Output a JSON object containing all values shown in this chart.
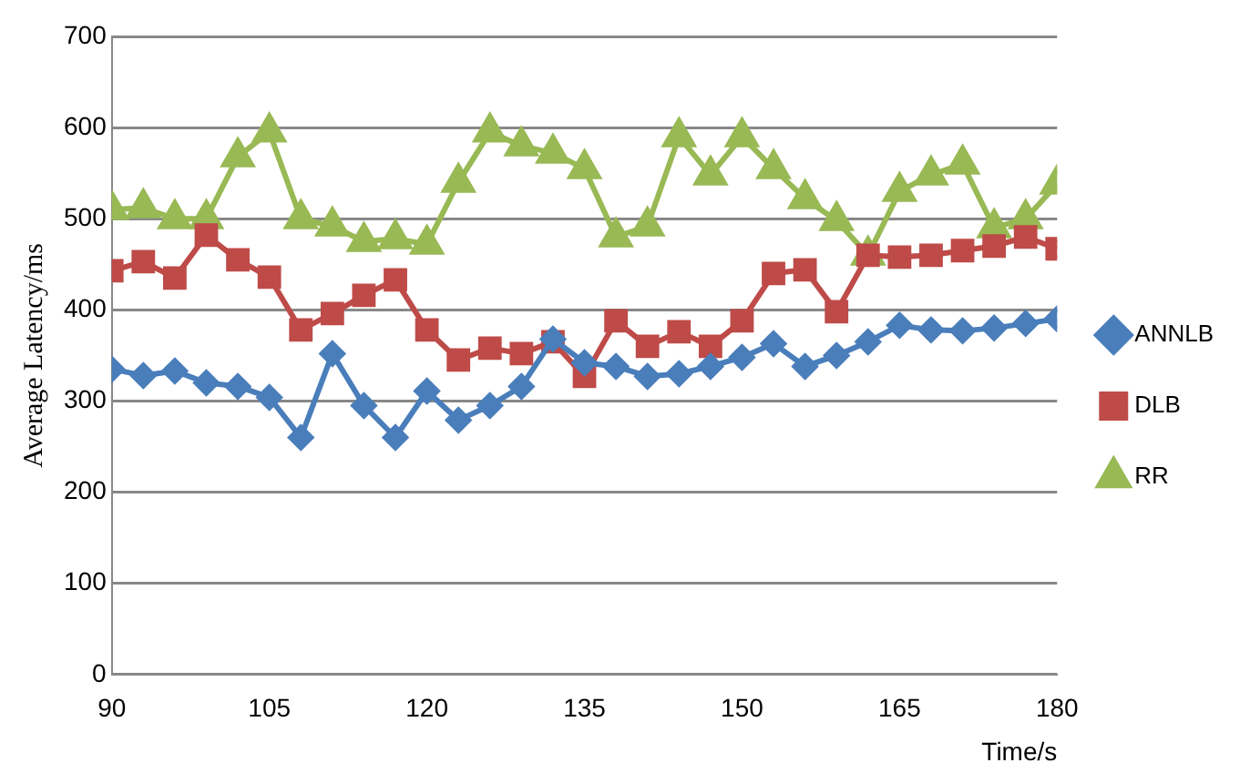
{
  "chart_data": {
    "type": "line",
    "ylabel": "Average Latency/ms",
    "xlabel": "Time/s",
    "x": [
      90,
      93,
      96,
      99,
      102,
      105,
      108,
      111,
      114,
      117,
      120,
      123,
      126,
      129,
      132,
      135,
      138,
      141,
      144,
      147,
      150,
      153,
      156,
      159,
      162,
      165,
      168,
      171,
      174,
      177,
      180
    ],
    "xlim": [
      90,
      180
    ],
    "xticks": [
      90,
      105,
      120,
      135,
      150,
      165,
      180
    ],
    "ylim": [
      0,
      700
    ],
    "yticks": [
      0,
      100,
      200,
      300,
      400,
      500,
      600,
      700
    ],
    "grid": "y",
    "legend": "right",
    "line_style": "solid",
    "series": [
      {
        "name": "ANNLB",
        "color": "#4a7ebb",
        "marker": "diamond",
        "values": [
          335,
          328,
          333,
          320,
          316,
          304,
          260,
          352,
          295,
          260,
          311,
          279,
          295,
          316,
          368,
          342,
          338,
          327,
          330,
          338,
          348,
          363,
          338,
          350,
          365,
          383,
          378,
          377,
          380,
          385,
          390
        ]
      },
      {
        "name": "DLB",
        "color": "#be4b48",
        "marker": "square",
        "values": [
          443,
          453,
          435,
          482,
          455,
          436,
          378,
          396,
          416,
          433,
          378,
          345,
          358,
          352,
          365,
          327,
          388,
          360,
          376,
          360,
          388,
          440,
          444,
          398,
          460,
          458,
          460,
          465,
          470,
          480,
          467
        ]
      },
      {
        "name": "RR",
        "color": "#98b954",
        "marker": "triangle",
        "values": [
          510,
          512,
          500,
          500,
          568,
          595,
          500,
          492,
          475,
          478,
          472,
          540,
          595,
          580,
          572,
          555,
          480,
          492,
          590,
          548,
          590,
          555,
          522,
          498,
          460,
          530,
          548,
          560,
          490,
          500,
          538
        ]
      }
    ]
  }
}
